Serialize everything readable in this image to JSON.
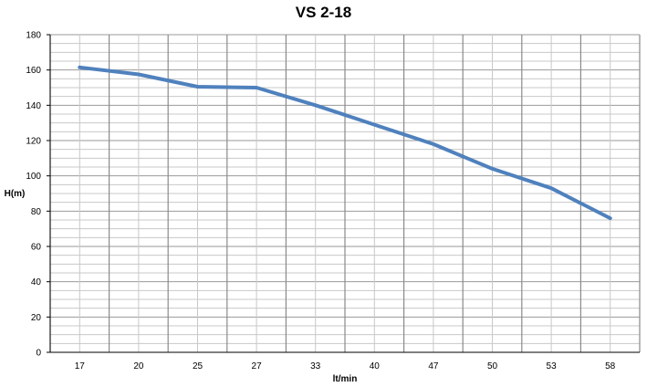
{
  "chart_data": {
    "type": "line",
    "title": "VS 2-18",
    "xlabel": "lt/min",
    "ylabel": "H(m)",
    "categories": [
      "17",
      "20",
      "25",
      "27",
      "33",
      "40",
      "47",
      "50",
      "53",
      "58"
    ],
    "series": [
      {
        "values": [
          161.5,
          157.5,
          150.5,
          150,
          140,
          129,
          118,
          104,
          93,
          76
        ]
      }
    ],
    "ylim": [
      0,
      180
    ],
    "yticks": [
      0,
      20,
      40,
      60,
      80,
      100,
      120,
      140,
      160,
      180
    ],
    "grid": true,
    "line_color": "#4f81bd"
  }
}
